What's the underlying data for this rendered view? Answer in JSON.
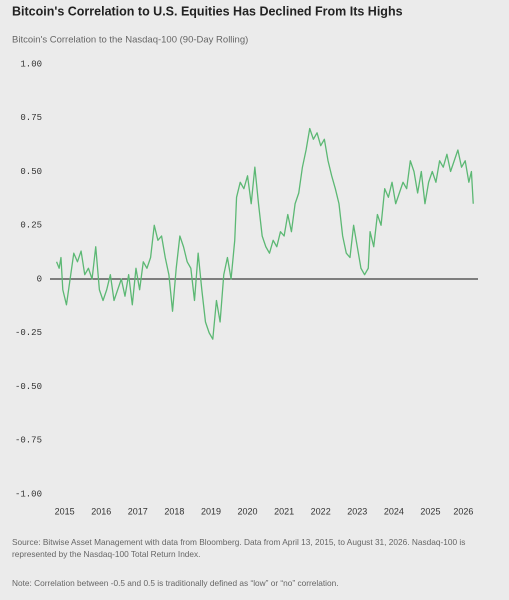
{
  "chart_data": {
    "type": "line",
    "title": "Bitcoin's Correlation to U.S. Equities Has Declined From Its Highs",
    "subtitle": "Bitcoin's Correlation to the Nasdaq-100 (90-Day Rolling)",
    "source": "Source: Bitwise Asset Management with data from Bloomberg. Data from April 13, 2015, to August 31, 2026. Nasdaq-100 is represented by the Nasdaq-100 Total Return Index.",
    "note": "Note: Correlation between -0.5 and 0.5 is traditionally defined as “low” or “no” correlation.",
    "x": [
      2015.28,
      2015.35,
      2015.4,
      2015.45,
      2015.55,
      2015.65,
      2015.75,
      2015.85,
      2015.95,
      2016.05,
      2016.15,
      2016.25,
      2016.35,
      2016.45,
      2016.55,
      2016.65,
      2016.75,
      2016.85,
      2016.95,
      2017.05,
      2017.15,
      2017.25,
      2017.35,
      2017.45,
      2017.55,
      2017.65,
      2017.75,
      2017.85,
      2017.95,
      2018.05,
      2018.15,
      2018.25,
      2018.35,
      2018.45,
      2018.55,
      2018.65,
      2018.75,
      2018.85,
      2018.95,
      2019.05,
      2019.15,
      2019.25,
      2019.35,
      2019.45,
      2019.55,
      2019.65,
      2019.75,
      2019.85,
      2019.95,
      2020.05,
      2020.15,
      2020.2,
      2020.3,
      2020.4,
      2020.5,
      2020.6,
      2020.7,
      2020.8,
      2020.9,
      2021.0,
      2021.1,
      2021.2,
      2021.3,
      2021.4,
      2021.5,
      2021.6,
      2021.7,
      2021.8,
      2021.9,
      2022.0,
      2022.1,
      2022.2,
      2022.3,
      2022.4,
      2022.5,
      2022.6,
      2022.7,
      2022.8,
      2022.9,
      2023.0,
      2023.1,
      2023.2,
      2023.3,
      2023.4,
      2023.5,
      2023.6,
      2023.7,
      2023.8,
      2023.85,
      2023.95,
      2024.05,
      2024.15,
      2024.25,
      2024.35,
      2024.45,
      2024.55,
      2024.65,
      2024.75,
      2024.85,
      2024.95,
      2025.05,
      2025.15,
      2025.25,
      2025.35,
      2025.45,
      2025.55,
      2025.65,
      2025.75,
      2025.85,
      2025.95,
      2026.05,
      2026.15,
      2026.25,
      2026.35,
      2026.45,
      2026.55,
      2026.62,
      2026.67
    ],
    "series": [
      {
        "color": "#5cb874",
        "values": [
          0.08,
          0.05,
          0.1,
          -0.05,
          -0.12,
          0.0,
          0.12,
          0.08,
          0.13,
          0.02,
          0.05,
          0.0,
          0.15,
          -0.05,
          -0.1,
          -0.05,
          0.02,
          -0.1,
          -0.05,
          0.0,
          -0.08,
          0.02,
          -0.12,
          0.05,
          -0.05,
          0.08,
          0.05,
          0.1,
          0.25,
          0.18,
          0.2,
          0.1,
          0.02,
          -0.15,
          0.05,
          0.2,
          0.15,
          0.08,
          0.05,
          -0.1,
          0.12,
          -0.05,
          -0.2,
          -0.25,
          -0.28,
          -0.1,
          -0.2,
          0.02,
          0.1,
          0.0,
          0.18,
          0.38,
          0.45,
          0.42,
          0.48,
          0.35,
          0.52,
          0.35,
          0.2,
          0.15,
          0.12,
          0.18,
          0.15,
          0.22,
          0.2,
          0.3,
          0.22,
          0.35,
          0.4,
          0.52,
          0.6,
          0.7,
          0.65,
          0.68,
          0.62,
          0.65,
          0.55,
          0.48,
          0.42,
          0.35,
          0.2,
          0.12,
          0.1,
          0.25,
          0.15,
          0.05,
          0.02,
          0.05,
          0.22,
          0.15,
          0.3,
          0.25,
          0.42,
          0.38,
          0.45,
          0.35,
          0.4,
          0.45,
          0.42,
          0.55,
          0.5,
          0.4,
          0.5,
          0.35,
          0.45,
          0.5,
          0.45,
          0.55,
          0.52,
          0.58,
          0.5,
          0.55,
          0.6,
          0.52,
          0.55,
          0.45,
          0.5,
          0.35
        ]
      }
    ],
    "xlim": [
      2015.1,
      2026.8
    ],
    "xticks": [
      {
        "value": 2015.5,
        "label": "2015"
      },
      {
        "value": 2016.5,
        "label": "2016"
      },
      {
        "value": 2017.5,
        "label": "2017"
      },
      {
        "value": 2018.5,
        "label": "2018"
      },
      {
        "value": 2019.5,
        "label": "2019"
      },
      {
        "value": 2020.5,
        "label": "2020"
      },
      {
        "value": 2021.5,
        "label": "2021"
      },
      {
        "value": 2022.5,
        "label": "2022"
      },
      {
        "value": 2023.5,
        "label": "2023"
      },
      {
        "value": 2024.5,
        "label": "2024"
      },
      {
        "value": 2025.5,
        "label": "2025"
      },
      {
        "value": 2026.4,
        "label": "2026"
      }
    ],
    "ylim": [
      -1,
      1
    ],
    "yticks": [
      {
        "value": 1,
        "label": "1.00"
      },
      0.75,
      {
        "value": 0.5,
        "label": "0.50"
      },
      0.25,
      0,
      -0.25,
      {
        "value": -0.5,
        "label": "-0.50"
      },
      -0.75,
      {
        "value": -1,
        "label": "-1.00"
      }
    ],
    "zero_line": true,
    "grid": false
  }
}
